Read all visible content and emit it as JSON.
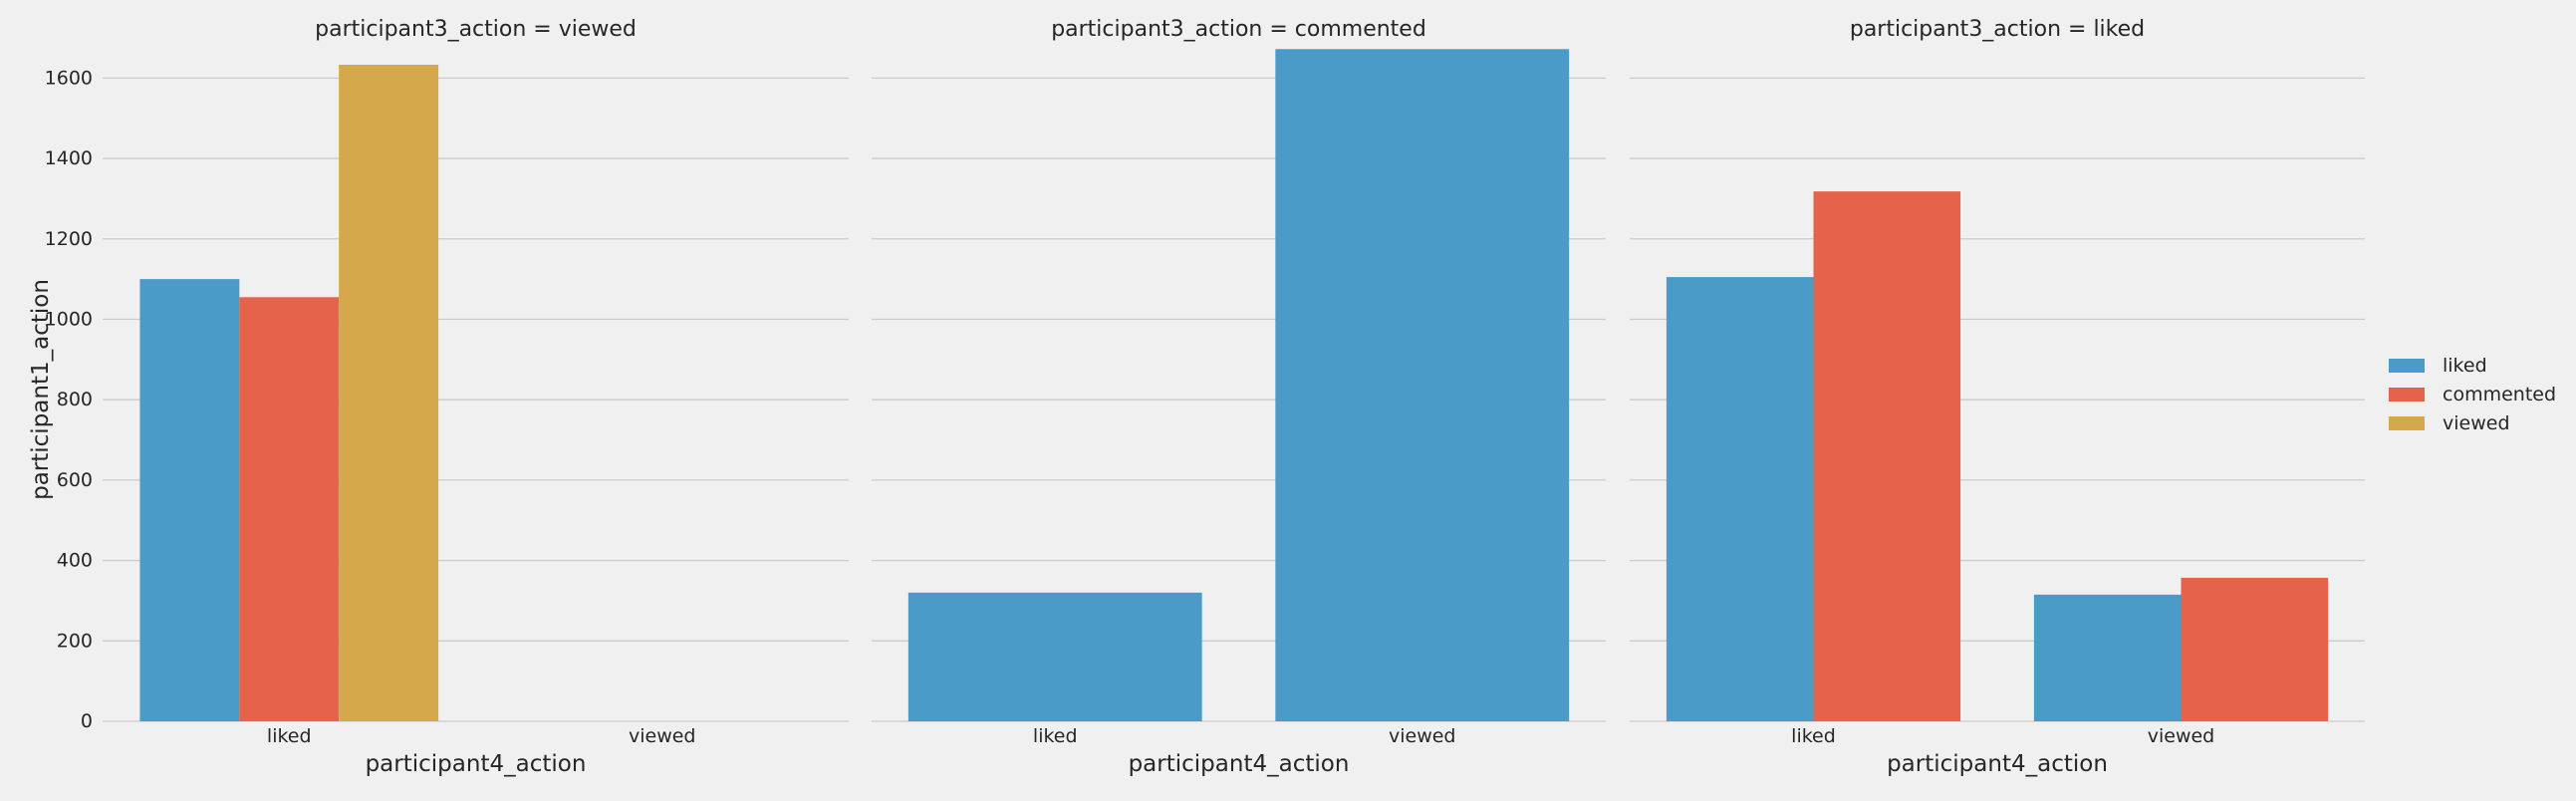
{
  "chart_data": [
    {
      "type": "bar",
      "title": "participant3_action = viewed",
      "xlabel": "participant4_action",
      "ylabel": "participant1_action",
      "categories": [
        "liked",
        "viewed"
      ],
      "series": [
        {
          "name": "liked",
          "values": [
            1100,
            null
          ]
        },
        {
          "name": "commented",
          "values": [
            1055,
            null
          ]
        },
        {
          "name": "viewed",
          "values": [
            1633,
            null
          ]
        }
      ],
      "ylim": [
        0,
        1700
      ],
      "yticks": [
        0,
        200,
        400,
        600,
        800,
        1000,
        1200,
        1400,
        1600
      ]
    },
    {
      "type": "bar",
      "title": "participant3_action = commented",
      "xlabel": "participant4_action",
      "ylabel": "",
      "categories": [
        "liked",
        "viewed"
      ],
      "series": [
        {
          "name": "liked",
          "values": [
            320,
            1672
          ]
        }
      ],
      "ylim": [
        0,
        1700
      ],
      "yticks": []
    },
    {
      "type": "bar",
      "title": "participant3_action = liked",
      "xlabel": "participant4_action",
      "ylabel": "",
      "categories": [
        "liked",
        "viewed"
      ],
      "series": [
        {
          "name": "liked",
          "values": [
            1105,
            315
          ]
        },
        {
          "name": "commented",
          "values": [
            1318,
            357
          ]
        }
      ],
      "ylim": [
        0,
        1700
      ],
      "yticks": []
    }
  ],
  "legend": {
    "position": "right",
    "items": [
      {
        "name": "liked",
        "color": "#4a9bc8"
      },
      {
        "name": "commented",
        "color": "#e5634a"
      },
      {
        "name": "viewed",
        "color": "#d4a84b"
      }
    ]
  },
  "grid": true
}
